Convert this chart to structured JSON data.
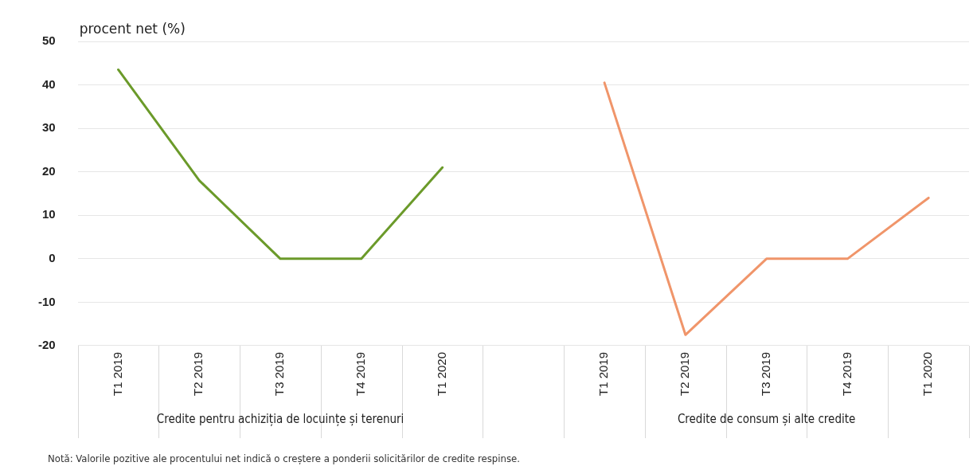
{
  "chart_data": {
    "type": "line",
    "ylabel": "procent net (%)",
    "categories": [
      "T1 2019",
      "T2 2019",
      "T3 2019",
      "T4 2019",
      "T1 2020",
      null,
      "T1 2019",
      "T2 2019",
      "T3 2019",
      "T4 2019",
      "T1 2020"
    ],
    "series": [
      {
        "color": "#6b9a2a",
        "values": [
          43.5,
          18,
          0,
          0,
          21,
          null,
          null,
          null,
          null,
          null,
          null
        ]
      },
      {
        "color": "#f0956a",
        "values": [
          null,
          null,
          null,
          null,
          null,
          null,
          40.5,
          -17.5,
          0,
          0,
          14
        ]
      }
    ],
    "ylim": [
      -20,
      50
    ],
    "yticks": [
      -20,
      -10,
      0,
      10,
      20,
      30,
      40,
      50
    ],
    "grid": "y",
    "legend": false,
    "marker": "none",
    "line_style": "solid",
    "annotations": [
      "Credite pentru achiziția de locuințe și terenuri",
      "Credite de consum și alte credite",
      "Notă: Valorile pozitive ale procentului net indică o creștere a ponderii solicitărilor de credite respinse."
    ]
  }
}
